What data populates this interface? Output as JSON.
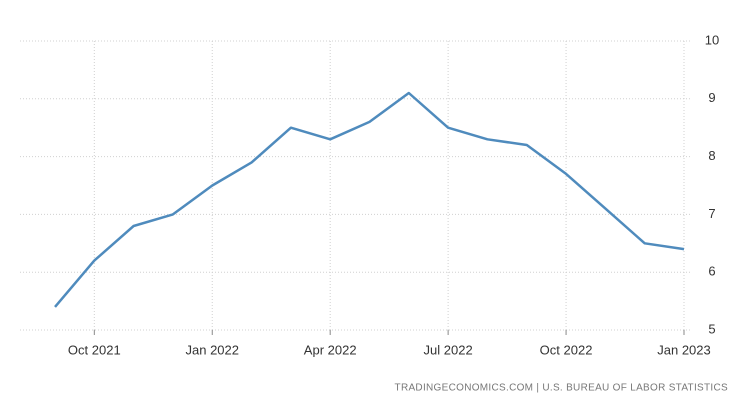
{
  "chart_data": {
    "type": "line",
    "categories": [
      null,
      "Oct 2021",
      null,
      null,
      "Jan 2022",
      null,
      null,
      "Apr 2022",
      null,
      null,
      "Jul 2022",
      null,
      null,
      "Oct 2022",
      null,
      null,
      "Jan 2023"
    ],
    "series": [
      {
        "color": "#4f8bbd",
        "values": [
          5.4,
          6.2,
          6.8,
          7.0,
          7.5,
          7.9,
          8.5,
          8.3,
          8.6,
          9.1,
          8.5,
          8.3,
          8.2,
          7.7,
          7.1,
          6.5,
          6.4
        ]
      }
    ],
    "ylim": [
      5,
      10
    ],
    "yticks": [
      5,
      6,
      7,
      8,
      9,
      10
    ],
    "grid": true,
    "source": "TRADINGECONOMICS.COM | U.S. BUREAU OF LABOR STATISTICS"
  }
}
